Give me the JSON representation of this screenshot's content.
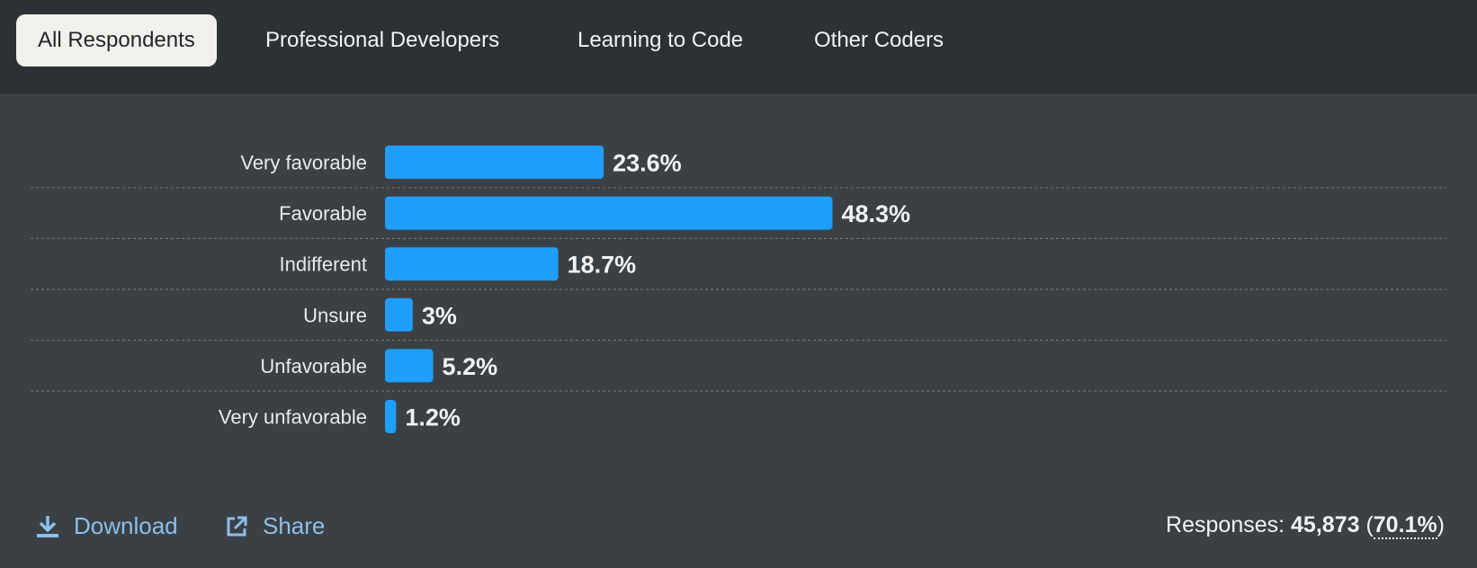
{
  "tabs": [
    {
      "label": "All Respondents",
      "active": true
    },
    {
      "label": "Professional Developers",
      "active": false
    },
    {
      "label": "Learning to Code",
      "active": false
    },
    {
      "label": "Other Coders",
      "active": false
    }
  ],
  "chart_data": {
    "type": "bar",
    "orientation": "horizontal",
    "categories": [
      "Very favorable",
      "Favorable",
      "Indifferent",
      "Unsure",
      "Unfavorable",
      "Very unfavorable"
    ],
    "values": [
      23.6,
      48.3,
      18.7,
      3,
      5.2,
      1.2
    ],
    "value_labels": [
      "23.6%",
      "48.3%",
      "18.7%",
      "3%",
      "5.2%",
      "1.2%"
    ],
    "xlim": [
      0,
      100
    ],
    "grid": false,
    "bar_color": "#1f9efb",
    "divider_style": "dotted"
  },
  "footer": {
    "download_label": "Download",
    "share_label": "Share",
    "responses_label": "Responses:",
    "responses_count": "45,873",
    "responses_percent": "70.1%",
    "link_color": "#8cbfea"
  }
}
